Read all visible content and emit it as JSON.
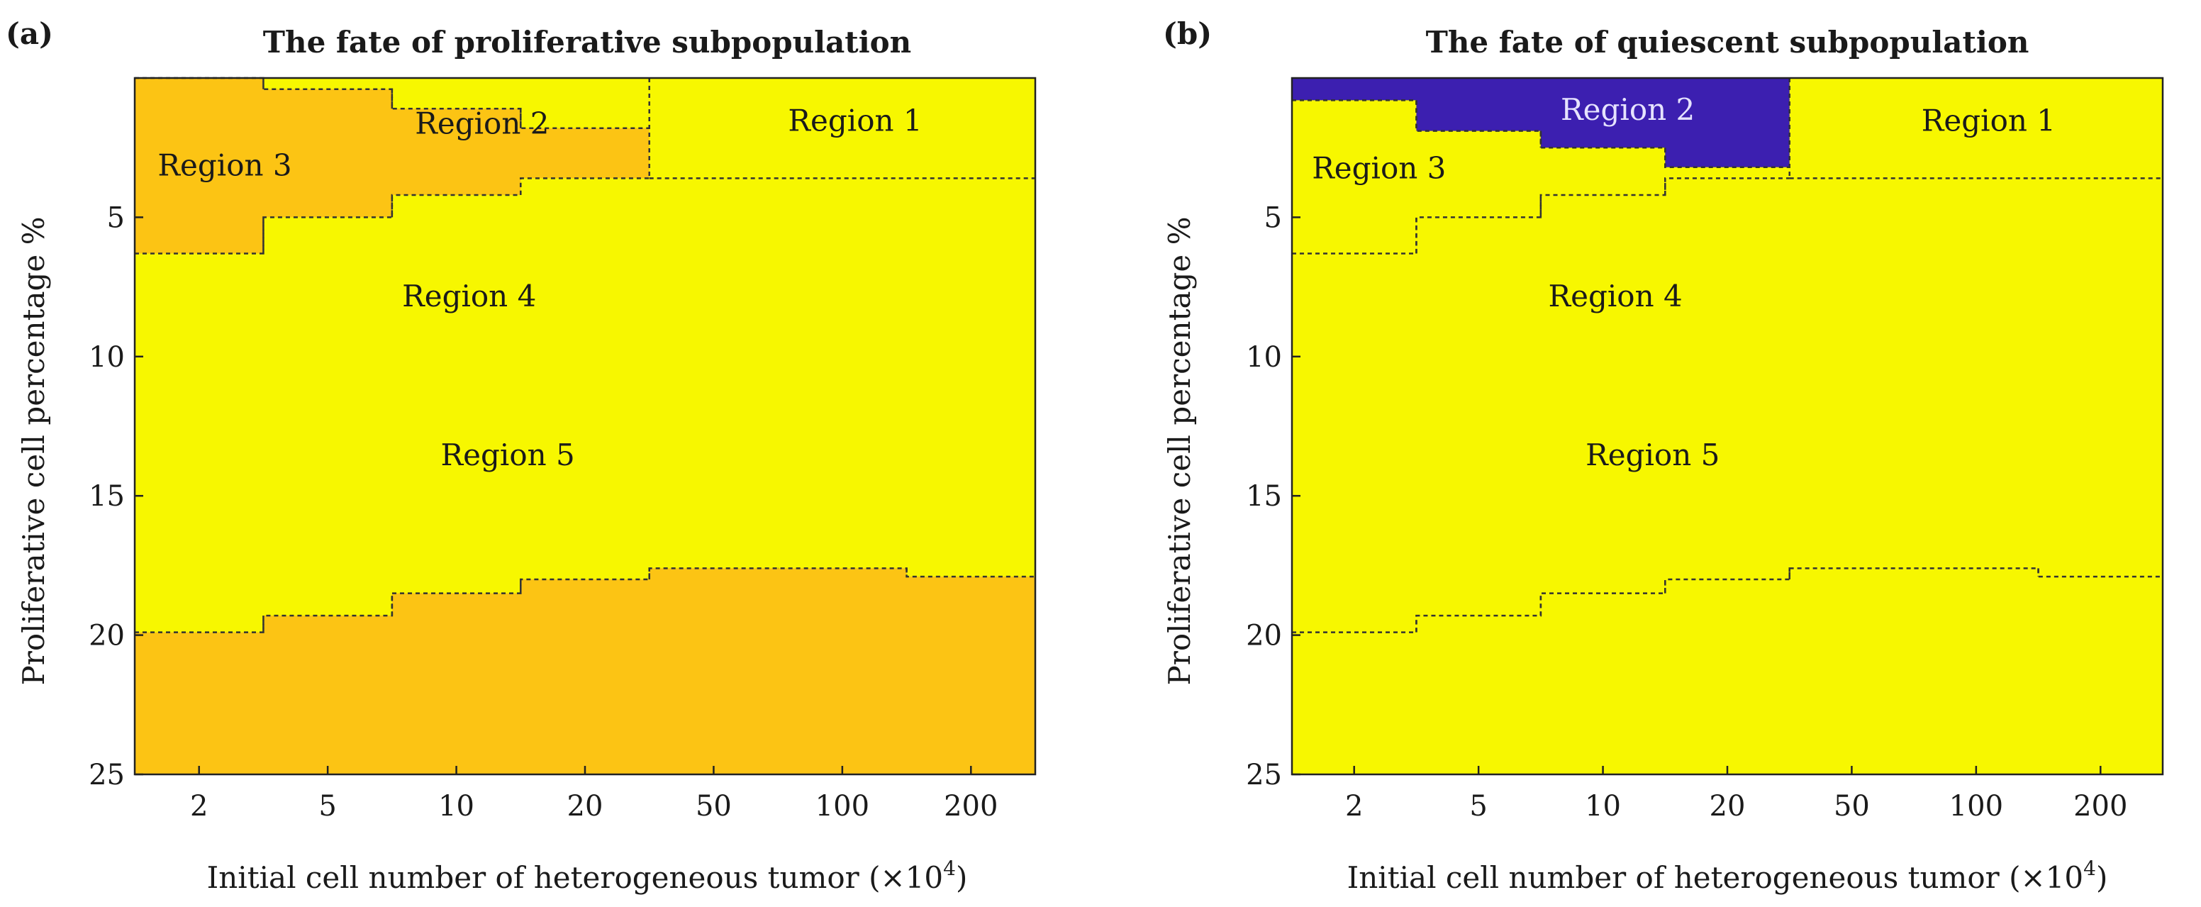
{
  "chart_data": [
    {
      "type": "heatmap",
      "panel_label": "(a)",
      "title": "The fate of proliferative subpopulation",
      "xlabel": "Initial cell number of heterogeneous tumor (×10",
      "xlabel_exp": "4",
      "xlabel_close": ")",
      "ylabel": "Proliferative cell percentage %",
      "x_categories": [
        "2",
        "5",
        "10",
        "20",
        "50",
        "100",
        "200"
      ],
      "y_ticks": [
        5,
        10,
        15,
        20,
        25
      ],
      "ylim": [
        0,
        25
      ],
      "y_inverted": true,
      "colors": {
        "yellow": "#F7F700",
        "orange": "#FCC414",
        "blue": "#3C1FB0"
      },
      "regions": [
        {
          "label": "Region 1",
          "color": "yellow",
          "label_at": [
            5.6,
            0.4
          ]
        },
        {
          "label": "Region 2",
          "color": "yellow",
          "label_at": [
            2.7,
            0.5
          ]
        },
        {
          "label": "Region 3",
          "color": "orange",
          "label_at": [
            0.7,
            2.0
          ]
        },
        {
          "label": "Region 4",
          "color": "yellow",
          "label_at": [
            2.6,
            6.7
          ]
        },
        {
          "label": "Region 5",
          "color": "orange",
          "label_at": [
            2.9,
            12.4
          ]
        }
      ],
      "step_boundaries": {
        "region5_top": [
          19.9,
          19.3,
          18.5,
          18.0,
          17.6,
          17.6,
          17.9
        ],
        "region3_top": [
          -0.7,
          0.4,
          1.1,
          1.8
        ],
        "region3_bottom": [
          6.3,
          5.0,
          4.2,
          3.6
        ]
      }
    },
    {
      "type": "heatmap",
      "panel_label": "(b)",
      "title": "The fate of quiescent subpopulation",
      "xlabel": "Initial cell number of heterogeneous tumor (×10",
      "xlabel_exp": "4",
      "xlabel_close": ")",
      "ylabel": "Proliferative cell percentage %",
      "x_categories": [
        "2",
        "5",
        "10",
        "20",
        "50",
        "100",
        "200"
      ],
      "y_ticks": [
        5,
        10,
        15,
        20,
        25
      ],
      "ylim": [
        0,
        25
      ],
      "y_inverted": true,
      "colors": {
        "yellow": "#F7F700",
        "orange": "#FCC414",
        "blue": "#3C1FB0"
      },
      "regions": [
        {
          "label": "Region 1",
          "color": "yellow",
          "label_at": [
            5.6,
            0.4
          ]
        },
        {
          "label": "Region 2",
          "color": "blue",
          "label_at": [
            2.7,
            0.0
          ]
        },
        {
          "label": "Region 3",
          "color": "yellow",
          "label_at": [
            0.7,
            2.1
          ]
        },
        {
          "label": "Region 4",
          "color": "yellow",
          "label_at": [
            2.6,
            6.7
          ]
        },
        {
          "label": "Region 5",
          "color": "yellow",
          "label_at": [
            2.9,
            12.4
          ]
        }
      ],
      "step_boundaries": {
        "region5_top": [
          19.9,
          19.3,
          18.5,
          18.0,
          17.6,
          17.6,
          17.9
        ],
        "region2_bottom": [
          0.8,
          1.9,
          2.5,
          3.2
        ],
        "region3_bottom": [
          6.3,
          5.0,
          4.2,
          3.6
        ]
      }
    }
  ]
}
